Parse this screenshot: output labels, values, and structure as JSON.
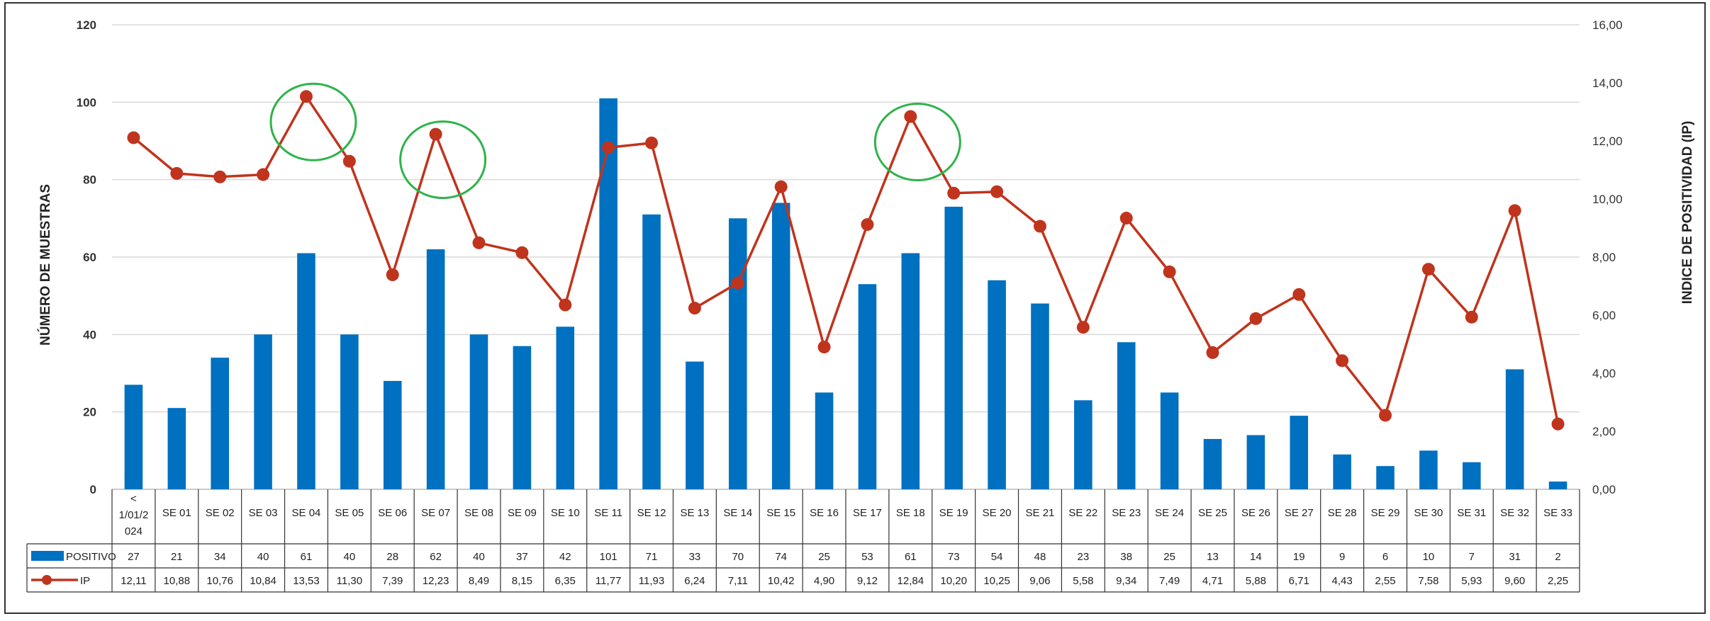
{
  "chart_data": {
    "type": "bar+line",
    "categories": [
      "< 1/01/2024",
      "SE 01",
      "SE 02",
      "SE 03",
      "SE 04",
      "SE 05",
      "SE 06",
      "SE 07",
      "SE 08",
      "SE 09",
      "SE 10",
      "SE 11",
      "SE 12",
      "SE 13",
      "SE 14",
      "SE 15",
      "SE 16",
      "SE 17",
      "SE 18",
      "SE 19",
      "SE 20",
      "SE 21",
      "SE 22",
      "SE 23",
      "SE 24",
      "SE 25",
      "SE 26",
      "SE 27",
      "SE 28",
      "SE 29",
      "SE 30",
      "SE 31",
      "SE 32",
      "SE 33"
    ],
    "category_lines": [
      [
        "<",
        "1/01/2",
        "024"
      ],
      [
        "SE 01"
      ],
      [
        "SE 02"
      ],
      [
        "SE 03"
      ],
      [
        "SE 04"
      ],
      [
        "SE 05"
      ],
      [
        "SE 06"
      ],
      [
        "SE 07"
      ],
      [
        "SE 08"
      ],
      [
        "SE 09"
      ],
      [
        "SE 10"
      ],
      [
        "SE 11"
      ],
      [
        "SE 12"
      ],
      [
        "SE 13"
      ],
      [
        "SE 14"
      ],
      [
        "SE 15"
      ],
      [
        "SE 16"
      ],
      [
        "SE 17"
      ],
      [
        "SE 18"
      ],
      [
        "SE 19"
      ],
      [
        "SE 20"
      ],
      [
        "SE 21"
      ],
      [
        "SE 22"
      ],
      [
        "SE 23"
      ],
      [
        "SE 24"
      ],
      [
        "SE 25"
      ],
      [
        "SE 26"
      ],
      [
        "SE 27"
      ],
      [
        "SE 28"
      ],
      [
        "SE 29"
      ],
      [
        "SE 30"
      ],
      [
        "SE 31"
      ],
      [
        "SE 32"
      ],
      [
        "SE 33"
      ]
    ],
    "series": [
      {
        "name": "POSITIVO",
        "type": "bar",
        "axis": "left",
        "color": "#0070C0",
        "values": [
          27,
          21,
          34,
          40,
          61,
          40,
          28,
          62,
          40,
          37,
          42,
          101,
          71,
          33,
          70,
          74,
          25,
          53,
          61,
          73,
          54,
          48,
          23,
          38,
          25,
          13,
          14,
          19,
          9,
          6,
          10,
          7,
          31,
          2
        ]
      },
      {
        "name": "IP",
        "type": "line",
        "axis": "right",
        "color": "#C0341D",
        "values": [
          12.11,
          10.88,
          10.76,
          10.84,
          13.53,
          11.3,
          7.39,
          12.23,
          8.49,
          8.15,
          6.35,
          11.77,
          11.93,
          6.24,
          7.11,
          10.42,
          4.9,
          9.12,
          12.84,
          10.2,
          10.25,
          9.06,
          5.58,
          9.34,
          7.49,
          4.71,
          5.88,
          6.71,
          4.43,
          2.55,
          7.58,
          5.93,
          9.6,
          2.25
        ],
        "labels": [
          "12,11",
          "10,88",
          "10,76",
          "10,84",
          "13,53",
          "11,30",
          "7,39",
          "12,23",
          "8,49",
          "8,15",
          "6,35",
          "11,77",
          "11,93",
          "6,24",
          "7,11",
          "10,42",
          "4,90",
          "9,12",
          "12,84",
          "10,20",
          "10,25",
          "9,06",
          "5,58",
          "9,34",
          "7,49",
          "4,71",
          "5,88",
          "6,71",
          "4,43",
          "2,55",
          "7,58",
          "5,93",
          "9,60",
          "2,25"
        ]
      }
    ],
    "ylabel": "NÚMERO DE MUESTRAS",
    "ylabel_right": "INDICE DE POSITIVIDAD (IP)",
    "ylim": [
      0,
      120
    ],
    "ylim_right": [
      0,
      16
    ],
    "yticks": [
      0,
      20,
      40,
      60,
      80,
      100,
      120
    ],
    "yticks_right": [
      "0,00",
      "2,00",
      "4,00",
      "6,00",
      "8,00",
      "10,00",
      "12,00",
      "14,00",
      "16,00"
    ],
    "grid": true,
    "legend_placement": "data-table",
    "highlight_circles_at": [
      "SE 04",
      "SE 07",
      "SE 18"
    ],
    "highlight_color": "#2DB34A"
  }
}
